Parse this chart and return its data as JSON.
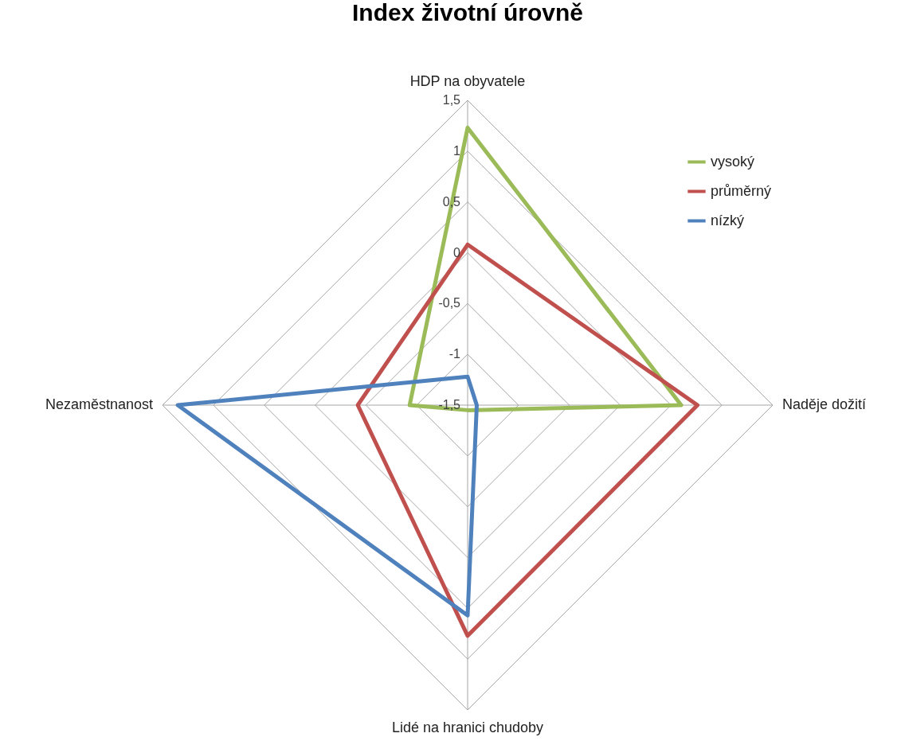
{
  "chart_data": {
    "type": "radar",
    "title": "Index životní úrovně",
    "categories": [
      "HDP na obyvatele",
      "Naděje dožití",
      "Lidé na hranici chudoby",
      "Nezaměstnanost"
    ],
    "series": [
      {
        "name": "vysoký",
        "color": "#9bbb59",
        "values": [
          1.23,
          0.6,
          -1.45,
          -0.93
        ]
      },
      {
        "name": "průměrný",
        "color": "#c0504d",
        "values": [
          0.08,
          0.76,
          0.77,
          -0.42
        ]
      },
      {
        "name": "nízký",
        "color": "#4f81bd",
        "values": [
          -1.22,
          -1.41,
          0.57,
          1.35
        ]
      }
    ],
    "ylim": [
      -1.5,
      1.5
    ],
    "yticks": [
      {
        "value": 1.5,
        "label": "1,5"
      },
      1,
      {
        "value": 0.5,
        "label": "0,5"
      },
      0,
      {
        "value": -0.5,
        "label": "-0,5"
      },
      -1,
      {
        "value": -1.5,
        "label": "-1,5"
      }
    ],
    "grid": true,
    "legend": "right",
    "marker": "none",
    "line_style": "solid"
  }
}
